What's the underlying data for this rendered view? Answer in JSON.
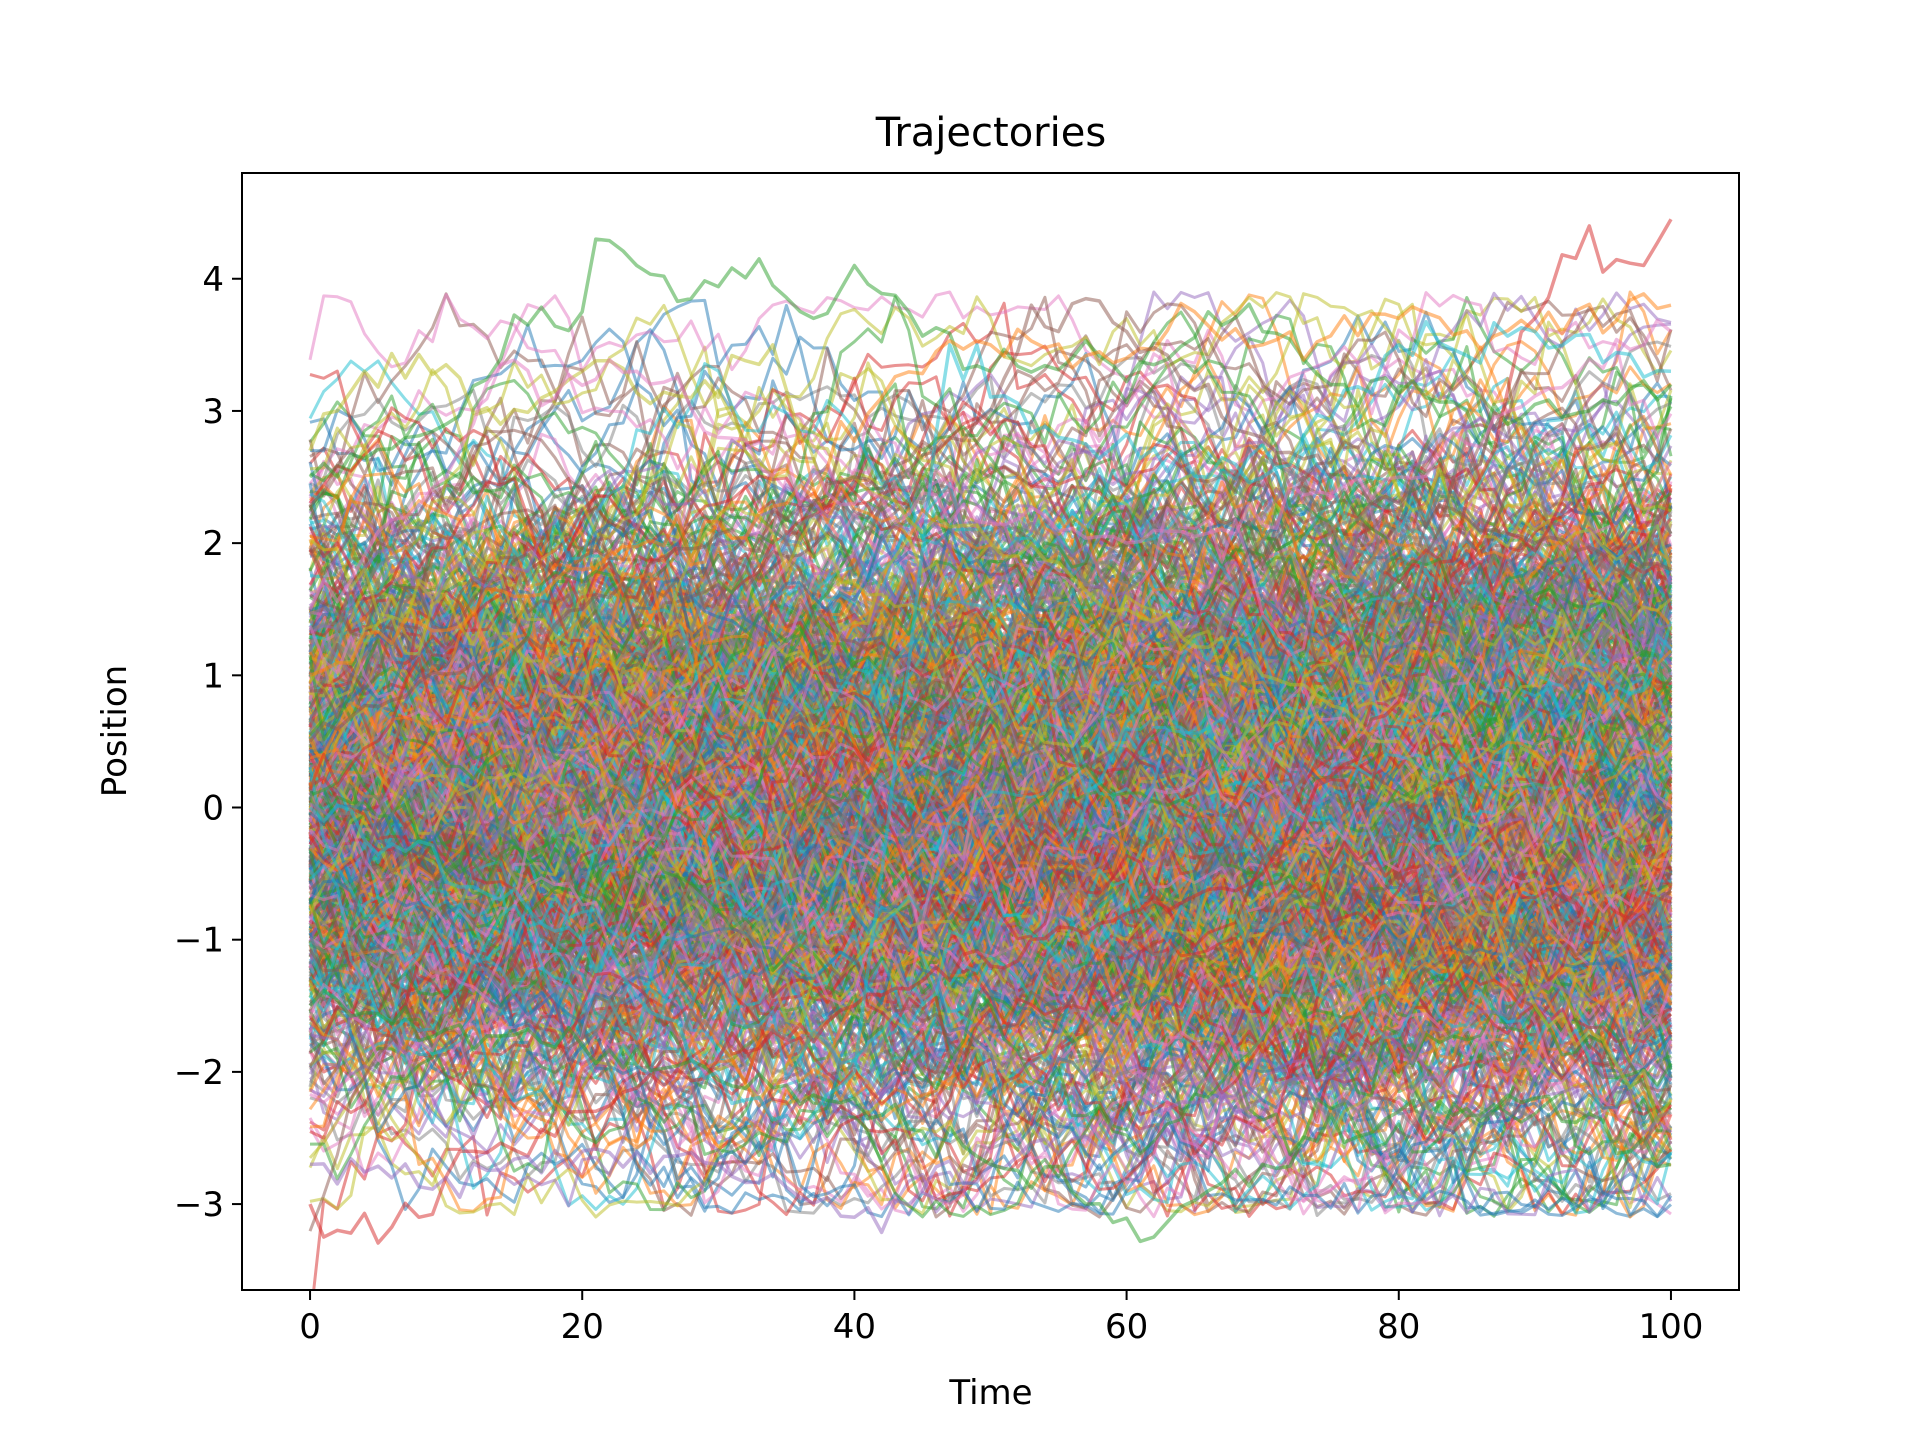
{
  "chart_data": {
    "type": "line",
    "title": "Trajectories",
    "xlabel": "Time",
    "ylabel": "Position",
    "xlim": [
      -5,
      105
    ],
    "ylim": [
      -3.65,
      4.8
    ],
    "xticks": [
      0,
      20,
      40,
      60,
      80,
      100
    ],
    "yticks": [
      -3,
      -2,
      -1,
      0,
      1,
      2,
      3,
      4
    ],
    "ytick_labels": [
      "−3",
      "−2",
      "−1",
      "0",
      "1",
      "2",
      "3",
      "4"
    ],
    "grid": false,
    "legend": "none",
    "line_alpha": 0.5,
    "palette": [
      "#1f77b4",
      "#ff7f0e",
      "#2ca02c",
      "#d62728",
      "#9467bd",
      "#8c564b",
      "#e377c2",
      "#7f7f7f",
      "#bcbd22",
      "#17becf"
    ],
    "series_count": 1000,
    "time_steps": [
      0,
      100
    ],
    "highlighted_series": [
      {
        "color": "#2ca02c",
        "x": [
          0,
          10,
          16,
          20,
          21,
          24,
          28,
          33,
          37,
          40,
          44,
          50,
          56,
          62,
          66,
          70,
          76,
          82,
          88,
          94,
          100
        ],
        "values": [
          2.5,
          2.9,
          3.65,
          3.75,
          4.3,
          4.1,
          3.85,
          4.15,
          3.7,
          4.1,
          3.75,
          3.3,
          3.4,
          3.35,
          3.75,
          3.6,
          3.2,
          3.1,
          2.9,
          3.0,
          3.2
        ]
      },
      {
        "color": "#d62728",
        "x": [
          0,
          1,
          8,
          12,
          20,
          30,
          40,
          50,
          60,
          70,
          80,
          86,
          90,
          94,
          95,
          98,
          100
        ],
        "values": [
          -3.0,
          -3.25,
          -3.1,
          -2.6,
          -2.3,
          -1.9,
          -1.5,
          -1.2,
          -0.8,
          -0.5,
          0.8,
          2.5,
          3.7,
          4.4,
          4.05,
          4.1,
          4.45
        ]
      },
      {
        "color": "#bcbd22",
        "x": [
          0,
          2,
          4,
          10,
          14,
          20,
          28,
          34,
          36,
          40,
          50,
          60,
          70,
          80,
          90,
          100
        ],
        "values": [
          2.7,
          3.0,
          3.3,
          3.35,
          2.9,
          3.3,
          3.1,
          3.5,
          2.8,
          2.5,
          2.0,
          1.5,
          1.0,
          0.5,
          -1.5,
          -2.2
        ]
      },
      {
        "color": "#9467bd",
        "x": [
          0,
          10,
          20,
          30,
          38,
          40,
          45,
          50,
          60,
          70,
          80,
          90,
          100
        ],
        "values": [
          -2.7,
          -2.8,
          -2.6,
          -2.7,
          -2.95,
          -3.1,
          -2.9,
          -2.7,
          -2.4,
          -2.2,
          -1.8,
          -1.4,
          -1.1
        ]
      },
      {
        "color": "#2ca02c",
        "x": [
          0,
          20,
          40,
          50,
          57,
          62,
          66,
          70,
          80,
          90,
          100
        ],
        "values": [
          -1.5,
          -1.8,
          -2.2,
          -2.7,
          -3.0,
          -3.25,
          -2.9,
          -2.7,
          -2.3,
          -2.2,
          -2.7
        ]
      },
      {
        "color": "#ff7f0e",
        "x": [
          0,
          20,
          35,
          42,
          46,
          50,
          60,
          65,
          70,
          80,
          90,
          100
        ],
        "values": [
          1.0,
          1.8,
          2.3,
          3.1,
          3.45,
          3.5,
          3.4,
          3.75,
          3.5,
          3.7,
          3.6,
          3.8
        ]
      },
      {
        "color": "#8c564b",
        "x": [
          0,
          20,
          40,
          50,
          53,
          55,
          57,
          60,
          70,
          80,
          90,
          100
        ],
        "values": [
          0.5,
          1.5,
          2.5,
          3.0,
          3.8,
          3.6,
          3.85,
          3.6,
          2.8,
          2.3,
          2.0,
          1.8
        ]
      },
      {
        "color": "#7f7f7f",
        "x": [
          0,
          20,
          40,
          60,
          80,
          90,
          96,
          100
        ],
        "values": [
          -1.0,
          -1.5,
          -1.8,
          -2.0,
          -2.3,
          -2.4,
          -2.5,
          -2.3
        ]
      },
      {
        "color": "#e377c2",
        "x": [
          0,
          10,
          14,
          18,
          24,
          30,
          40,
          60,
          80,
          100
        ],
        "values": [
          1.5,
          2.5,
          3.35,
          3.1,
          3.3,
          2.8,
          2.3,
          2.0,
          2.5,
          3.6
        ]
      },
      {
        "color": "#17becf",
        "x": [
          0,
          20,
          30,
          36,
          40,
          47,
          55,
          70,
          80,
          90,
          100
        ],
        "values": [
          0.0,
          -1.0,
          -2.0,
          -2.5,
          -2.0,
          3.5,
          2.8,
          2.5,
          3.5,
          3.6,
          3.3
        ]
      }
    ]
  }
}
